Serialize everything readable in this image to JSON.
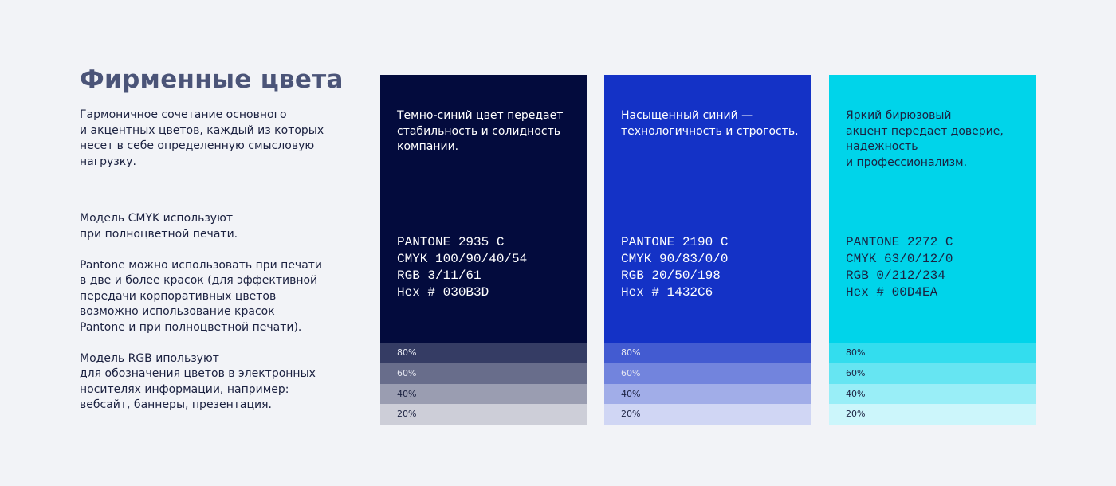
{
  "header": {
    "title": "Фирменные цвета"
  },
  "intro": [
    "Гармоничное сочетание основного",
    "и акцентных цветов, каждый из которых",
    "несет в себе определенную смысловую",
    "нагрузку."
  ],
  "notes": [
    [
      "Модель CMYK используют",
      "при полноцветной печати."
    ],
    [
      "Pantone можно использовать при печати",
      "в две и более красок (для эффективной",
      "передачи корпоративных цветов",
      "возможно использование красок",
      "Pantone и при полноцветной печати)."
    ],
    [
      "Модель RGB ипользуют",
      "для обозначения цветов в электронных",
      "носителях информации, например:",
      "вебсайт, баннеры, презентация."
    ]
  ],
  "swatches": [
    {
      "color": "#030B3D",
      "text_color": "#ffffff",
      "description": [
        "Темно-синий цвет передает",
        "стабильность и солидность",
        "компании."
      ],
      "codes": [
        "PANTONE 2935 C",
        "CMYK 100/90/40/54",
        "RGB 3/11/61",
        "Hex # 030B3D"
      ],
      "tints": [
        {
          "value": 80,
          "label": "80%"
        },
        {
          "value": 60,
          "label": "60%"
        },
        {
          "value": 40,
          "label": "40%"
        },
        {
          "value": 20,
          "label": "20%"
        }
      ]
    },
    {
      "color": "#1432C6",
      "text_color": "#ffffff",
      "description": [
        "Насыщенный синий  —",
        "технологичность и строгость."
      ],
      "codes": [
        "PANTONE 2190 C",
        "CMYK 90/83/0/0",
        "RGB 20/50/198",
        "Hex # 1432C6"
      ],
      "tints": [
        {
          "value": 80,
          "label": "80%"
        },
        {
          "value": 60,
          "label": "60%"
        },
        {
          "value": 40,
          "label": "40%"
        },
        {
          "value": 20,
          "label": "20%"
        }
      ]
    },
    {
      "color": "#00D4EA",
      "text_color": "#1b2140",
      "description": [
        "Яркий бирюзовый",
        "акцент передает доверие,",
        "надежность",
        "и профессионализм."
      ],
      "codes": [
        "PANTONE 2272 C",
        "CMYK 63/0/12/0",
        "RGB 0/212/234",
        "Hex # 00D4EA"
      ],
      "tints": [
        {
          "value": 80,
          "label": "80%"
        },
        {
          "value": 60,
          "label": "60%"
        },
        {
          "value": 40,
          "label": "40%"
        },
        {
          "value": 20,
          "label": "20%"
        }
      ]
    }
  ]
}
